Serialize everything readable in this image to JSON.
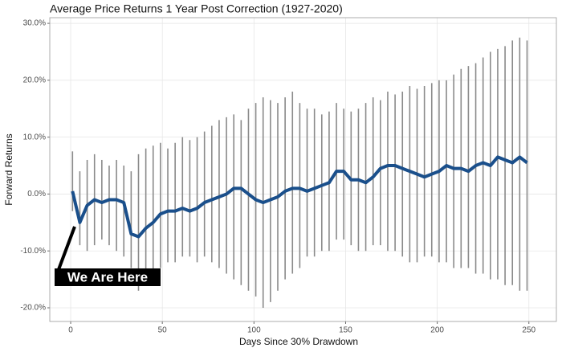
{
  "chart_data": {
    "type": "errorbar",
    "title": "Average Price Returns 1 Year Post Correction (1927-2020)",
    "x_label": "Days Since 30% Drawdown",
    "y_label": "Forward Returns",
    "annotation": "We Are Here",
    "color": "#1a4f8b",
    "bar_color": "#8a8a8a",
    "grid": true,
    "xlim": [
      -11.4,
      265
    ],
    "ylim": [
      -22.4,
      31
    ],
    "xticks": [
      0,
      50,
      100,
      150,
      200,
      250
    ],
    "yticks": [
      {
        "value": -20,
        "label": "-20.0%"
      },
      {
        "value": -10,
        "label": "-10.0%"
      },
      {
        "value": 0,
        "label": "0.0%"
      },
      {
        "value": 10,
        "label": "10.0%"
      },
      {
        "value": 20,
        "label": "20.0%"
      },
      {
        "value": 30,
        "label": "30.0%"
      }
    ],
    "x": [
      1,
      5,
      9,
      13,
      17,
      21,
      25,
      29,
      33,
      37,
      41,
      45,
      49,
      53,
      57,
      61,
      65,
      69,
      73,
      77,
      81,
      85,
      89,
      93,
      97,
      101,
      105,
      109,
      113,
      117,
      121,
      125,
      129,
      133,
      137,
      141,
      145,
      149,
      153,
      157,
      161,
      165,
      169,
      173,
      177,
      181,
      185,
      189,
      193,
      197,
      201,
      205,
      209,
      213,
      217,
      221,
      225,
      229,
      233,
      237,
      241,
      245,
      249
    ],
    "values": [
      0.5,
      -5,
      -2,
      -1,
      -1.5,
      -1,
      -1,
      -1.5,
      -7,
      -7.5,
      -6,
      -5,
      -3.5,
      -3,
      -3,
      -2.5,
      -3,
      -2.5,
      -1.5,
      -1,
      -0.5,
      0,
      1,
      1,
      0,
      -1,
      -1.5,
      -1,
      -0.5,
      0.5,
      1,
      1,
      0.5,
      1,
      1.5,
      2,
      4,
      4,
      2.5,
      2.5,
      2,
      3,
      4.5,
      5,
      5,
      4.5,
      4,
      3.5,
      3,
      3.5,
      4,
      5,
      4.5,
      4.5,
      4,
      5,
      5.5,
      5,
      6.5,
      6,
      5.5,
      6.5,
      5.5
    ],
    "lower": [
      -3,
      -9,
      -10,
      -9,
      -8,
      -9,
      -10,
      -11,
      -13,
      -17,
      -15,
      -14,
      -13,
      -12,
      -12,
      -11,
      -11,
      -12,
      -11,
      -12,
      -13,
      -14,
      -15,
      -16,
      -17,
      -18,
      -20,
      -19,
      -17,
      -15,
      -14,
      -13,
      -11,
      -11,
      -10,
      -10,
      -8,
      -8,
      -9,
      -10,
      -10,
      -9,
      -9,
      -10,
      -10,
      -11,
      -12,
      -12,
      -11,
      -11,
      -12,
      -12,
      -13,
      -13,
      -13,
      -14,
      -14,
      -15,
      -15,
      -16,
      -16,
      -17,
      -17
    ],
    "upper": [
      7.5,
      4,
      6,
      7,
      6,
      5,
      6,
      5,
      4,
      7,
      8,
      8.5,
      9,
      8,
      9,
      10,
      9.5,
      10,
      11,
      12,
      13,
      13.5,
      14,
      13,
      15,
      16,
      17,
      16.5,
      16,
      17,
      18,
      16,
      15,
      15,
      14,
      14.5,
      16,
      15,
      14.5,
      15,
      16,
      17,
      16.5,
      18,
      17.5,
      18,
      19,
      18.5,
      19,
      19.5,
      20,
      20,
      21,
      22,
      22.5,
      23,
      24,
      25,
      25.5,
      26,
      27,
      27.5,
      27
    ]
  }
}
